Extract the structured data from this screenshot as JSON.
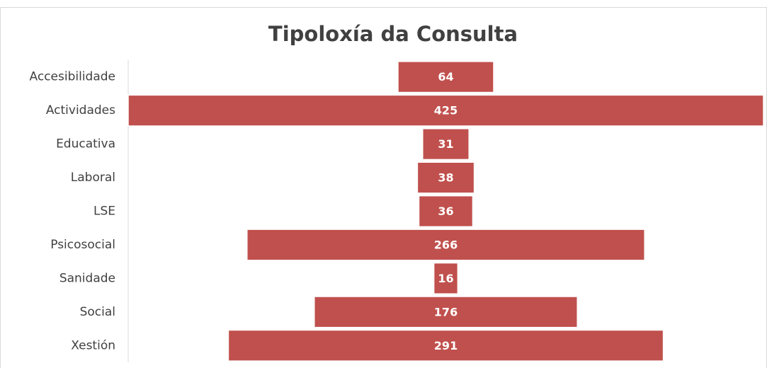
{
  "chart_data": {
    "type": "funnel",
    "title": "Tipoloxía da Consulta",
    "categories": [
      "Accesibilidade",
      "Actividades",
      "Educativa",
      "Laboral",
      "LSE",
      "Psicosocial",
      "Sanidade",
      "Social",
      "Xestión"
    ],
    "values": [
      64,
      425,
      31,
      38,
      36,
      266,
      16,
      176,
      291
    ],
    "color": "#c0504d"
  }
}
